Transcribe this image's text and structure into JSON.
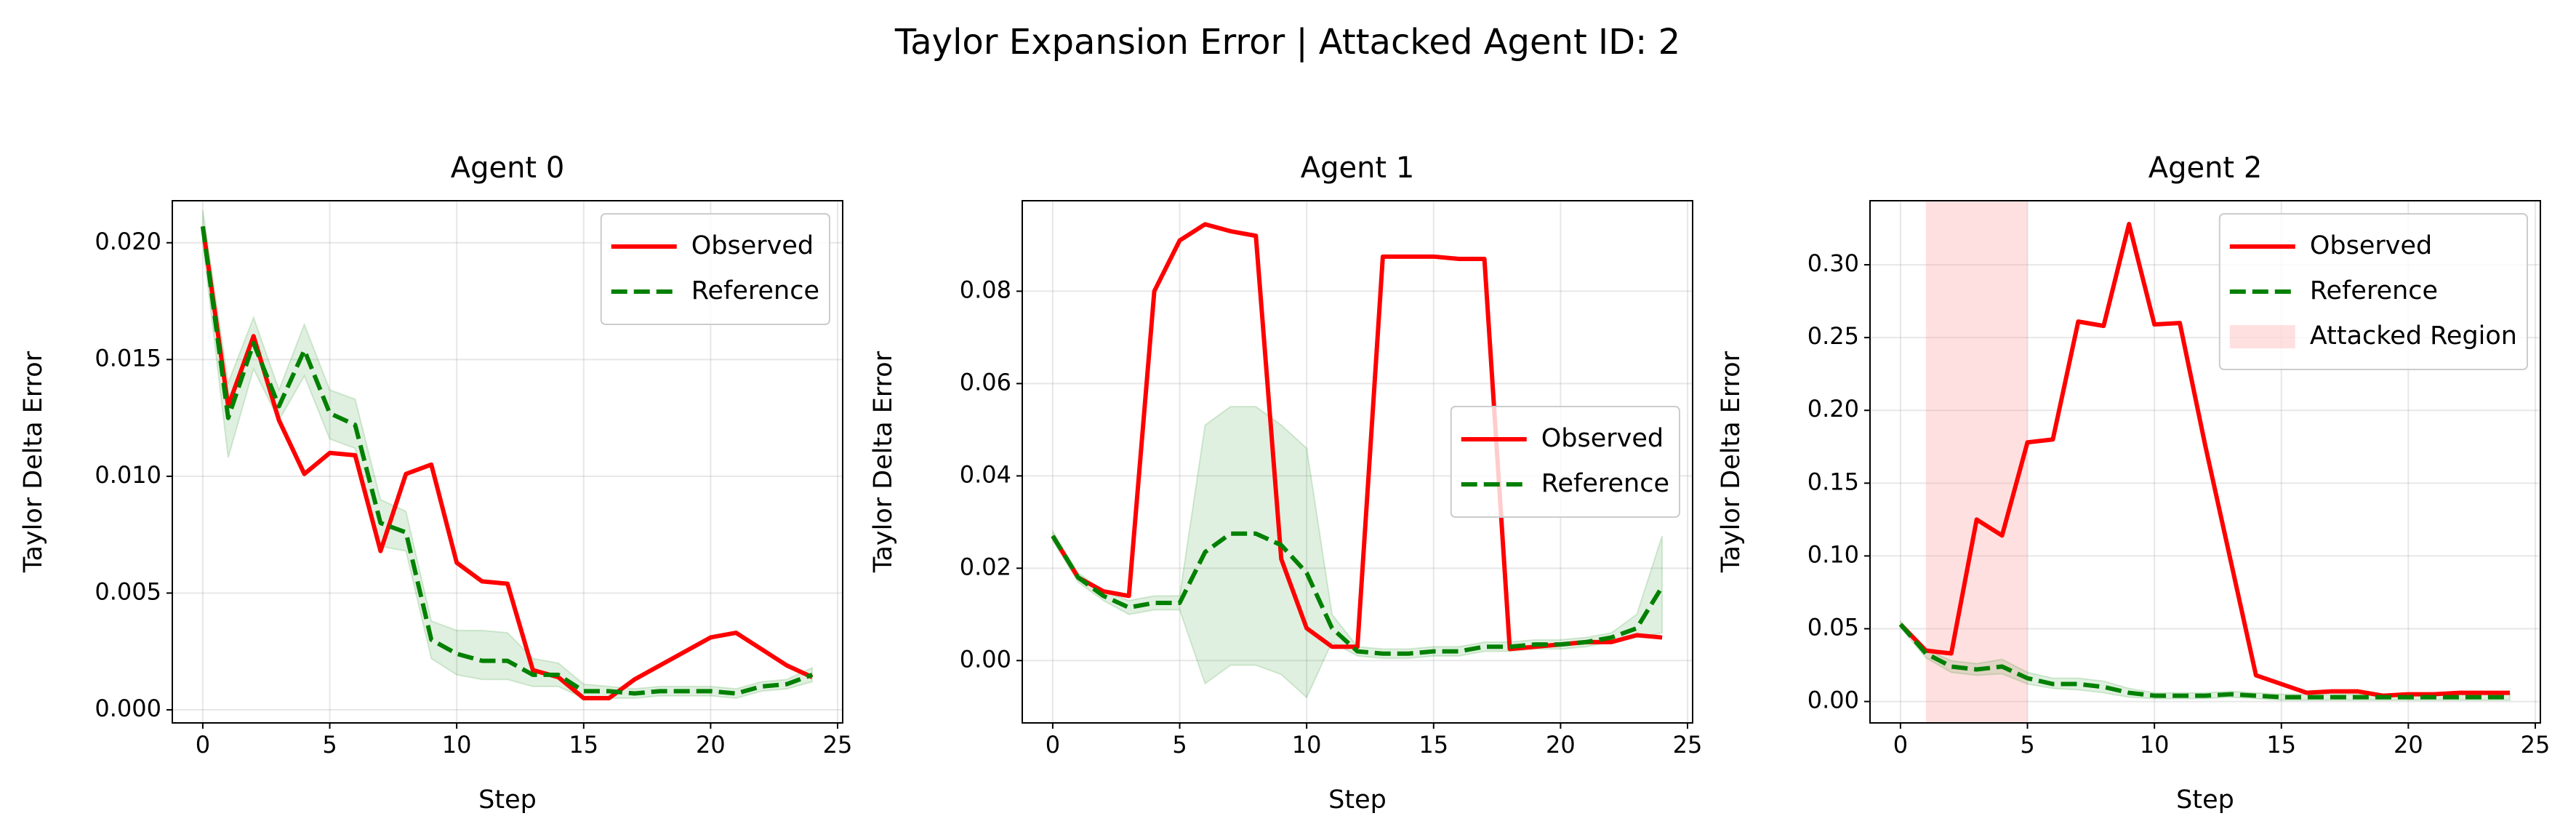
{
  "title": "Taylor Expansion Error | Attacked Agent ID: 2",
  "chart_data": [
    {
      "type": "line",
      "title": "Agent 0",
      "xlabel": "Step",
      "ylabel": "Taylor Delta Error",
      "x": [
        0,
        1,
        2,
        3,
        4,
        5,
        6,
        7,
        8,
        9,
        10,
        11,
        12,
        13,
        14,
        15,
        16,
        17,
        18,
        19,
        20,
        21,
        22,
        23,
        24
      ],
      "series": [
        {
          "name": "Observed",
          "color": "#ff0000",
          "dash": false,
          "values": [
            0.0207,
            0.013,
            0.016,
            0.0124,
            0.0101,
            0.011,
            0.0109,
            0.0068,
            0.0101,
            0.0105,
            0.0063,
            0.0055,
            0.0054,
            0.0017,
            0.0014,
            0.0005,
            0.0005,
            0.0013,
            0.0019,
            0.0025,
            0.0031,
            0.0033,
            0.0026,
            0.0019,
            0.0014
          ]
        },
        {
          "name": "Reference",
          "color": "#008000",
          "dash": true,
          "values": [
            0.0207,
            0.0125,
            0.0157,
            0.013,
            0.0154,
            0.0127,
            0.0122,
            0.008,
            0.0076,
            0.003,
            0.0024,
            0.0021,
            0.0021,
            0.0015,
            0.0015,
            0.0008,
            0.0008,
            0.0007,
            0.0008,
            0.0008,
            0.0008,
            0.0007,
            0.001,
            0.0011,
            0.0015
          ],
          "band_low": [
            0.02,
            0.0108,
            0.0146,
            0.0124,
            0.0143,
            0.0116,
            0.0112,
            0.007,
            0.0068,
            0.0022,
            0.0015,
            0.0013,
            0.0013,
            0.001,
            0.001,
            0.0005,
            0.0005,
            0.0005,
            0.0006,
            0.0006,
            0.0006,
            0.0005,
            0.0008,
            0.0009,
            0.0012
          ],
          "band_high": [
            0.0214,
            0.014,
            0.0168,
            0.0137,
            0.0165,
            0.0137,
            0.0133,
            0.009,
            0.0085,
            0.0038,
            0.0034,
            0.0034,
            0.0033,
            0.0022,
            0.002,
            0.0011,
            0.001,
            0.0009,
            0.001,
            0.001,
            0.001,
            0.0009,
            0.0012,
            0.0013,
            0.0018
          ]
        }
      ],
      "xlim": [
        -1.2,
        25.2
      ],
      "xticks": [
        0,
        5,
        10,
        15,
        20,
        25
      ],
      "ylim": [
        -0.00056,
        0.0218
      ],
      "yticks": [
        {
          "value": 0,
          "label": "0.000"
        },
        {
          "value": 0.005,
          "label": "0.005"
        },
        {
          "value": 0.01,
          "label": "0.010"
        },
        {
          "value": 0.015,
          "label": "0.015"
        },
        {
          "value": 0.02,
          "label": "0.020"
        }
      ],
      "grid": true,
      "legend": "upper-right"
    },
    {
      "type": "line",
      "title": "Agent 1",
      "xlabel": "Step",
      "ylabel": "Taylor Delta Error",
      "x": [
        0,
        1,
        2,
        3,
        4,
        5,
        6,
        7,
        8,
        9,
        10,
        11,
        12,
        13,
        14,
        15,
        16,
        17,
        18,
        19,
        20,
        21,
        22,
        23,
        24
      ],
      "series": [
        {
          "name": "Observed",
          "color": "#ff0000",
          "dash": false,
          "values": [
            0.027,
            0.018,
            0.015,
            0.014,
            0.08,
            0.091,
            0.0945,
            0.093,
            0.092,
            0.022,
            0.007,
            0.003,
            0.003,
            0.0875,
            0.0875,
            0.0875,
            0.087,
            0.087,
            0.0025,
            0.003,
            0.0035,
            0.004,
            0.004,
            0.0055,
            0.005
          ]
        },
        {
          "name": "Reference",
          "color": "#008000",
          "dash": true,
          "values": [
            0.027,
            0.018,
            0.014,
            0.0115,
            0.0125,
            0.0125,
            0.0235,
            0.0275,
            0.0275,
            0.025,
            0.019,
            0.007,
            0.002,
            0.0015,
            0.0015,
            0.002,
            0.002,
            0.003,
            0.003,
            0.0035,
            0.0035,
            0.004,
            0.005,
            0.007,
            0.016
          ],
          "band_low": [
            0.026,
            0.017,
            0.013,
            0.01,
            0.011,
            0.011,
            -0.005,
            -0.001,
            -0.001,
            -0.003,
            -0.008,
            0.004,
            0.001,
            0.0005,
            0.0005,
            0.001,
            0.001,
            0.002,
            0.002,
            0.0025,
            0.0025,
            0.003,
            0.004,
            0.005,
            0.006
          ],
          "band_high": [
            0.028,
            0.019,
            0.015,
            0.013,
            0.014,
            0.014,
            0.051,
            0.055,
            0.055,
            0.051,
            0.046,
            0.01,
            0.003,
            0.0025,
            0.0025,
            0.003,
            0.003,
            0.004,
            0.004,
            0.0045,
            0.0045,
            0.005,
            0.006,
            0.01,
            0.027
          ]
        }
      ],
      "xlim": [
        -1.2,
        25.2
      ],
      "xticks": [
        0,
        5,
        10,
        15,
        20,
        25
      ],
      "ylim": [
        -0.0135,
        0.0996
      ],
      "yticks": [
        {
          "value": 0,
          "label": "0.00"
        },
        {
          "value": 0.02,
          "label": "0.02"
        },
        {
          "value": 0.04,
          "label": "0.04"
        },
        {
          "value": 0.06,
          "label": "0.06"
        },
        {
          "value": 0.08,
          "label": "0.08"
        }
      ],
      "grid": true,
      "legend": "center-right"
    },
    {
      "type": "line",
      "title": "Agent 2",
      "xlabel": "Step",
      "ylabel": "Taylor Delta Error",
      "x": [
        0,
        1,
        2,
        3,
        4,
        5,
        6,
        7,
        8,
        9,
        10,
        11,
        12,
        13,
        14,
        15,
        16,
        17,
        18,
        19,
        20,
        21,
        22,
        23,
        24
      ],
      "series": [
        {
          "name": "Observed",
          "color": "#ff0000",
          "dash": false,
          "values": [
            0.053,
            0.035,
            0.033,
            0.125,
            0.114,
            0.178,
            0.18,
            0.261,
            0.258,
            0.328,
            0.259,
            0.26,
            0.176,
            0.097,
            0.018,
            0.012,
            0.006,
            0.007,
            0.007,
            0.004,
            0.005,
            0.005,
            0.006,
            0.006,
            0.006
          ]
        },
        {
          "name": "Reference",
          "color": "#008000",
          "dash": true,
          "values": [
            0.053,
            0.033,
            0.024,
            0.022,
            0.024,
            0.016,
            0.012,
            0.012,
            0.01,
            0.006,
            0.004,
            0.004,
            0.004,
            0.005,
            0.004,
            0.003,
            0.003,
            0.003,
            0.003,
            0.003,
            0.003,
            0.003,
            0.003,
            0.003,
            0.003
          ],
          "band_low": [
            0.051,
            0.03,
            0.02,
            0.018,
            0.019,
            0.012,
            0.009,
            0.008,
            0.006,
            0.003,
            0.002,
            0.002,
            0.002,
            0.003,
            0.002,
            0.001,
            0.001,
            0.001,
            0.001,
            0.001,
            0.001,
            0.001,
            0.001,
            0.001,
            0.001
          ],
          "band_high": [
            0.055,
            0.036,
            0.028,
            0.026,
            0.029,
            0.02,
            0.016,
            0.016,
            0.014,
            0.009,
            0.006,
            0.006,
            0.006,
            0.007,
            0.006,
            0.005,
            0.005,
            0.005,
            0.005,
            0.005,
            0.005,
            0.005,
            0.005,
            0.005,
            0.005
          ]
        }
      ],
      "span": {
        "name": "Attacked Region",
        "x": [
          1,
          5
        ],
        "color": "#ff9999"
      },
      "xlim": [
        -1.2,
        25.2
      ],
      "xticks": [
        0,
        5,
        10,
        15,
        20,
        25
      ],
      "ylim": [
        -0.0147,
        0.344
      ],
      "yticks": [
        {
          "value": 0,
          "label": "0.00"
        },
        {
          "value": 0.05,
          "label": "0.05"
        },
        {
          "value": 0.1,
          "label": "0.10"
        },
        {
          "value": 0.15,
          "label": "0.15"
        },
        {
          "value": 0.2,
          "label": "0.20"
        },
        {
          "value": 0.25,
          "label": "0.25"
        },
        {
          "value": 0.3,
          "label": "0.30"
        }
      ],
      "grid": true,
      "legend": "upper-right"
    }
  ]
}
